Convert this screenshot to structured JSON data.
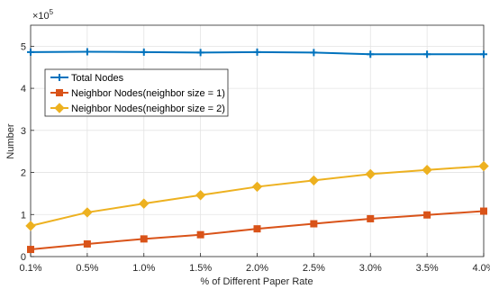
{
  "chart_data": {
    "type": "line",
    "title": "",
    "xlabel": "% of Different Paper Rate",
    "ylabel": "Number",
    "y_exponent_base": "×10",
    "y_exponent_power": "5",
    "categories": [
      "0.1%",
      "0.5%",
      "1.0%",
      "1.5%",
      "2.0%",
      "2.5%",
      "3.0%",
      "3.5%",
      "4.0%"
    ],
    "y_ticks": [
      "0",
      "1",
      "2",
      "3",
      "4",
      "5"
    ],
    "ylim": [
      0,
      5.5
    ],
    "grid": true,
    "legend_position": "upper-left",
    "series": [
      {
        "name": "Total Nodes",
        "color": "#0072BD",
        "marker": "plus",
        "values": [
          4.86,
          4.87,
          4.86,
          4.85,
          4.86,
          4.85,
          4.81,
          4.81,
          4.81
        ]
      },
      {
        "name": "Neighbor Nodes(neighbor size = 1)",
        "color": "#D95319",
        "marker": "square",
        "values": [
          0.17,
          0.3,
          0.42,
          0.52,
          0.66,
          0.78,
          0.9,
          0.99,
          1.08
        ]
      },
      {
        "name": "Neighbor Nodes(neighbor size = 2)",
        "color": "#EDB120",
        "marker": "diamond",
        "values": [
          0.73,
          1.05,
          1.26,
          1.46,
          1.66,
          1.81,
          1.96,
          2.06,
          2.15
        ]
      }
    ]
  }
}
